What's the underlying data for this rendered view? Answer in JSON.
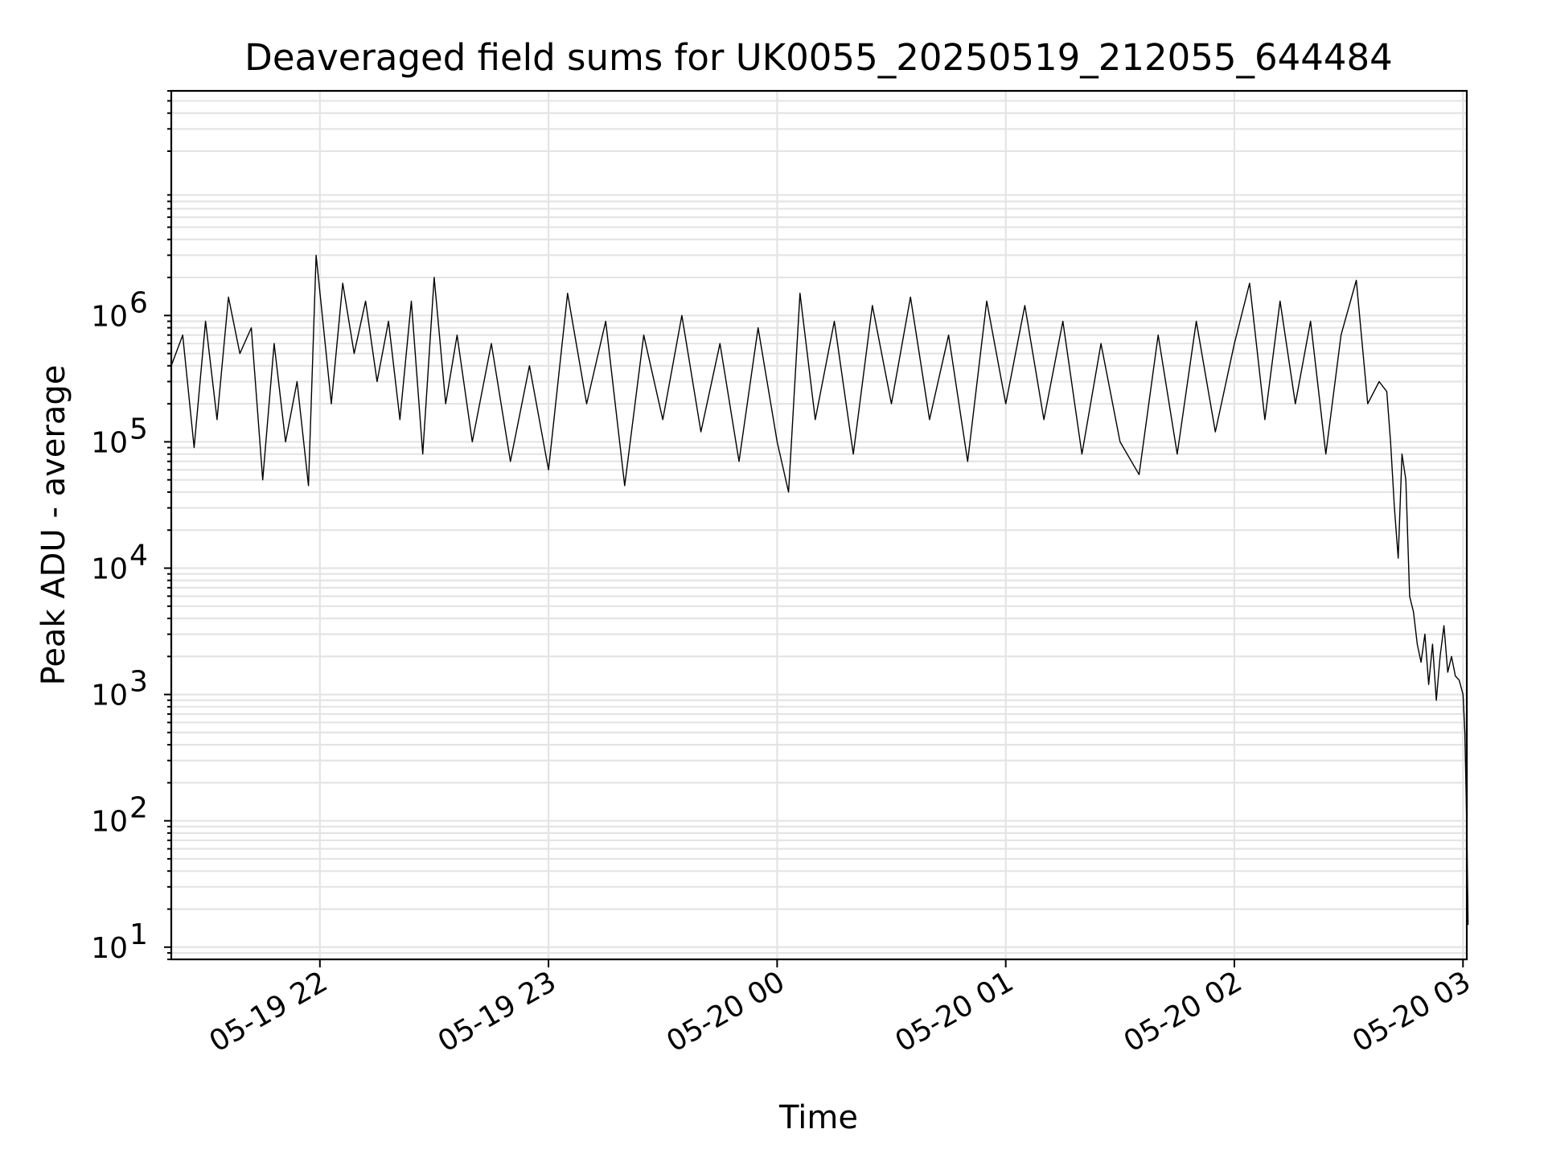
{
  "chart_data": {
    "type": "line",
    "title": "Deaveraged field sums for UK0055_20250519_212055_644484",
    "xlabel": "Time",
    "ylabel": "Peak ADU - average",
    "x_scale": "time",
    "y_scale": "log",
    "xlim": [
      "2025-05-19T21:21:00",
      "2025-05-20T03:01:00"
    ],
    "ylim": [
      8,
      60000000
    ],
    "grid": true,
    "grid_minor": true,
    "legend": "none",
    "x_ticks": [
      {
        "label": "05-19 22",
        "value": "2025-05-19T22:00:00"
      },
      {
        "label": "05-19 23",
        "value": "2025-05-19T23:00:00"
      },
      {
        "label": "05-20 00",
        "value": "2025-05-20T00:00:00"
      },
      {
        "label": "05-20 01",
        "value": "2025-05-20T01:00:00"
      },
      {
        "label": "05-20 02",
        "value": "2025-05-20T02:00:00"
      },
      {
        "label": "05-20 03",
        "value": "2025-05-20T03:00:00"
      }
    ],
    "y_ticks": [
      {
        "base": "10",
        "exp": "1",
        "value": 10
      },
      {
        "base": "10",
        "exp": "2",
        "value": 100
      },
      {
        "base": "10",
        "exp": "3",
        "value": 1000
      },
      {
        "base": "10",
        "exp": "4",
        "value": 10000
      },
      {
        "base": "10",
        "exp": "5",
        "value": 100000
      },
      {
        "base": "10",
        "exp": "6",
        "value": 1000000
      }
    ],
    "series": [
      {
        "color": "#000000",
        "points": [
          [
            "2025-05-19T21:21:00",
            400000
          ],
          [
            "2025-05-19T21:24:00",
            700000
          ],
          [
            "2025-05-19T21:27:00",
            90000
          ],
          [
            "2025-05-19T21:30:00",
            900000
          ],
          [
            "2025-05-19T21:33:00",
            150000
          ],
          [
            "2025-05-19T21:36:00",
            1400000
          ],
          [
            "2025-05-19T21:39:00",
            500000
          ],
          [
            "2025-05-19T21:42:00",
            800000
          ],
          [
            "2025-05-19T21:45:00",
            50000
          ],
          [
            "2025-05-19T21:48:00",
            600000
          ],
          [
            "2025-05-19T21:51:00",
            100000
          ],
          [
            "2025-05-19T21:54:00",
            300000
          ],
          [
            "2025-05-19T21:57:00",
            45000
          ],
          [
            "2025-05-19T21:59:00",
            3000000
          ],
          [
            "2025-05-19T22:03:00",
            200000
          ],
          [
            "2025-05-19T22:06:00",
            1800000
          ],
          [
            "2025-05-19T22:09:00",
            500000
          ],
          [
            "2025-05-19T22:12:00",
            1300000
          ],
          [
            "2025-05-19T22:15:00",
            300000
          ],
          [
            "2025-05-19T22:18:00",
            900000
          ],
          [
            "2025-05-19T22:21:00",
            150000
          ],
          [
            "2025-05-19T22:24:00",
            1300000
          ],
          [
            "2025-05-19T22:27:00",
            80000
          ],
          [
            "2025-05-19T22:30:00",
            2000000
          ],
          [
            "2025-05-19T22:33:00",
            200000
          ],
          [
            "2025-05-19T22:36:00",
            700000
          ],
          [
            "2025-05-19T22:40:00",
            100000
          ],
          [
            "2025-05-19T22:45:00",
            600000
          ],
          [
            "2025-05-19T22:50:00",
            70000
          ],
          [
            "2025-05-19T22:55:00",
            400000
          ],
          [
            "2025-05-19T23:00:00",
            60000
          ],
          [
            "2025-05-19T23:05:00",
            1500000
          ],
          [
            "2025-05-19T23:10:00",
            200000
          ],
          [
            "2025-05-19T23:15:00",
            900000
          ],
          [
            "2025-05-19T23:20:00",
            45000
          ],
          [
            "2025-05-19T23:25:00",
            700000
          ],
          [
            "2025-05-19T23:30:00",
            150000
          ],
          [
            "2025-05-19T23:35:00",
            1000000
          ],
          [
            "2025-05-19T23:40:00",
            120000
          ],
          [
            "2025-05-19T23:45:00",
            600000
          ],
          [
            "2025-05-19T23:50:00",
            70000
          ],
          [
            "2025-05-19T23:55:00",
            800000
          ],
          [
            "2025-05-20T00:00:00",
            100000
          ],
          [
            "2025-05-20T00:03:00",
            40000
          ],
          [
            "2025-05-20T00:06:00",
            1500000
          ],
          [
            "2025-05-20T00:10:00",
            150000
          ],
          [
            "2025-05-20T00:15:00",
            900000
          ],
          [
            "2025-05-20T00:20:00",
            80000
          ],
          [
            "2025-05-20T00:25:00",
            1200000
          ],
          [
            "2025-05-20T00:30:00",
            200000
          ],
          [
            "2025-05-20T00:35:00",
            1400000
          ],
          [
            "2025-05-20T00:40:00",
            150000
          ],
          [
            "2025-05-20T00:45:00",
            700000
          ],
          [
            "2025-05-20T00:50:00",
            70000
          ],
          [
            "2025-05-20T00:55:00",
            1300000
          ],
          [
            "2025-05-20T01:00:00",
            200000
          ],
          [
            "2025-05-20T01:05:00",
            1200000
          ],
          [
            "2025-05-20T01:10:00",
            150000
          ],
          [
            "2025-05-20T01:15:00",
            900000
          ],
          [
            "2025-05-20T01:20:00",
            80000
          ],
          [
            "2025-05-20T01:25:00",
            600000
          ],
          [
            "2025-05-20T01:30:00",
            100000
          ],
          [
            "2025-05-20T01:35:00",
            55000
          ],
          [
            "2025-05-20T01:40:00",
            700000
          ],
          [
            "2025-05-20T01:45:00",
            80000
          ],
          [
            "2025-05-20T01:50:00",
            900000
          ],
          [
            "2025-05-20T01:55:00",
            120000
          ],
          [
            "2025-05-20T02:00:00",
            600000
          ],
          [
            "2025-05-20T02:04:00",
            1800000
          ],
          [
            "2025-05-20T02:08:00",
            150000
          ],
          [
            "2025-05-20T02:12:00",
            1300000
          ],
          [
            "2025-05-20T02:16:00",
            200000
          ],
          [
            "2025-05-20T02:20:00",
            900000
          ],
          [
            "2025-05-20T02:24:00",
            80000
          ],
          [
            "2025-05-20T02:28:00",
            700000
          ],
          [
            "2025-05-20T02:32:00",
            1900000
          ],
          [
            "2025-05-20T02:35:00",
            200000
          ],
          [
            "2025-05-20T02:38:00",
            300000
          ],
          [
            "2025-05-20T02:40:00",
            250000
          ],
          [
            "2025-05-20T02:41:00",
            100000
          ],
          [
            "2025-05-20T02:42:00",
            30000
          ],
          [
            "2025-05-20T02:43:00",
            12000
          ],
          [
            "2025-05-20T02:44:00",
            80000
          ],
          [
            "2025-05-20T02:45:00",
            50000
          ],
          [
            "2025-05-20T02:46:00",
            6000
          ],
          [
            "2025-05-20T02:47:00",
            4500
          ],
          [
            "2025-05-20T02:48:00",
            2500
          ],
          [
            "2025-05-20T02:49:00",
            1800
          ],
          [
            "2025-05-20T02:50:00",
            3000
          ],
          [
            "2025-05-20T02:51:00",
            1200
          ],
          [
            "2025-05-20T02:52:00",
            2500
          ],
          [
            "2025-05-20T02:53:00",
            900
          ],
          [
            "2025-05-20T02:54:00",
            2000
          ],
          [
            "2025-05-20T02:55:00",
            3500
          ],
          [
            "2025-05-20T02:56:00",
            1500
          ],
          [
            "2025-05-20T02:57:00",
            2000
          ],
          [
            "2025-05-20T02:58:00",
            1400
          ],
          [
            "2025-05-20T02:59:00",
            1300
          ],
          [
            "2025-05-20T03:00:00",
            1000
          ],
          [
            "2025-05-20T03:00:30",
            500
          ],
          [
            "2025-05-20T03:01:00",
            90
          ],
          [
            "2025-05-20T03:01:20",
            15
          ]
        ]
      }
    ]
  }
}
